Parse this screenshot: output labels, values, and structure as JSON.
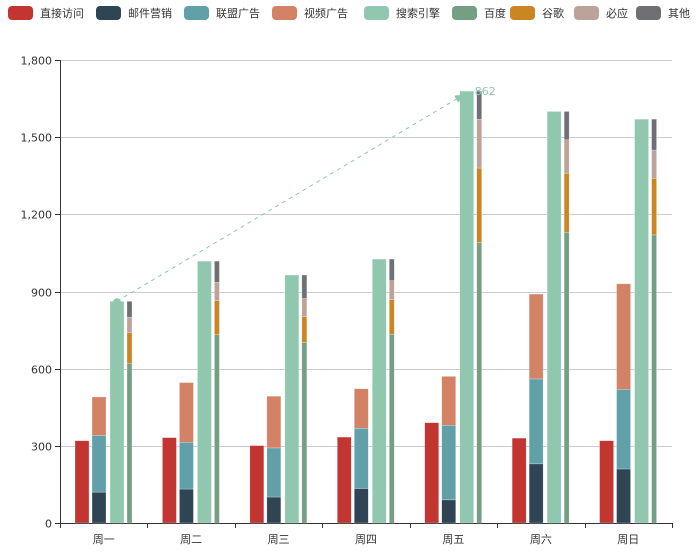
{
  "legend": [
    {
      "name": "直接访问",
      "color": "#c23531"
    },
    {
      "name": "邮件营销",
      "color": "#2f4554"
    },
    {
      "name": "联盟广告",
      "color": "#61a0a8"
    },
    {
      "name": "视频广告",
      "color": "#d48265"
    },
    {
      "name": "搜索引擎",
      "color": "#91c7ae"
    },
    {
      "name": "百度",
      "color": "#749f83"
    },
    {
      "name": "谷歌",
      "color": "#ca8622"
    },
    {
      "name": "必应",
      "color": "#bda29a"
    },
    {
      "name": "其他",
      "color": "#6e7074"
    }
  ],
  "chart_data": {
    "type": "bar",
    "title": "",
    "xlabel": "",
    "ylabel": "",
    "categories": [
      "周一",
      "周二",
      "周三",
      "周四",
      "周五",
      "周六",
      "周日"
    ],
    "ylim": [
      0,
      1800
    ],
    "yticks": [
      0,
      300,
      600,
      900,
      1200,
      1500,
      1800
    ],
    "ytick_labels": [
      "0",
      "300",
      "600",
      "900",
      "1,200",
      "1,500",
      "1,800"
    ],
    "grid": true,
    "legend_position": "top",
    "series": [
      {
        "name": "直接访问",
        "stack": null,
        "color": "#c23531",
        "values": [
          320,
          332,
          301,
          334,
          390,
          330,
          320
        ]
      },
      {
        "name": "邮件营销",
        "stack": "广告",
        "color": "#2f4554",
        "values": [
          120,
          132,
          101,
          134,
          90,
          230,
          210
        ]
      },
      {
        "name": "联盟广告",
        "stack": "广告",
        "color": "#61a0a8",
        "values": [
          220,
          182,
          191,
          234,
          290,
          330,
          310
        ]
      },
      {
        "name": "视频广告",
        "stack": "广告",
        "color": "#d48265",
        "values": [
          150,
          232,
          201,
          154,
          190,
          330,
          410
        ]
      },
      {
        "name": "搜索引擎",
        "stack": null,
        "color": "#91c7ae",
        "values": [
          862,
          1018,
          964,
          1026,
          1679,
          1600,
          1570
        ]
      },
      {
        "name": "百度",
        "stack": "搜索引擎",
        "color": "#749f83",
        "values": [
          620,
          732,
          701,
          734,
          1090,
          1130,
          1120
        ]
      },
      {
        "name": "谷歌",
        "stack": "搜索引擎",
        "color": "#ca8622",
        "values": [
          120,
          132,
          101,
          134,
          290,
          230,
          220
        ]
      },
      {
        "name": "必应",
        "stack": "搜索引擎",
        "color": "#bda29a",
        "values": [
          60,
          72,
          71,
          74,
          190,
          130,
          110
        ]
      },
      {
        "name": "其他",
        "stack": "搜索引擎",
        "color": "#6e7074",
        "values": [
          62,
          82,
          91,
          84,
          109,
          110,
          120
        ]
      }
    ],
    "annotations": [
      {
        "type": "markLine",
        "series": "搜索引擎",
        "from": {
          "category": "周一",
          "value": 862
        },
        "to": {
          "category": "周五",
          "value": 1679
        },
        "label": "862",
        "style": "dashed",
        "color": "#91c7ae"
      }
    ]
  }
}
